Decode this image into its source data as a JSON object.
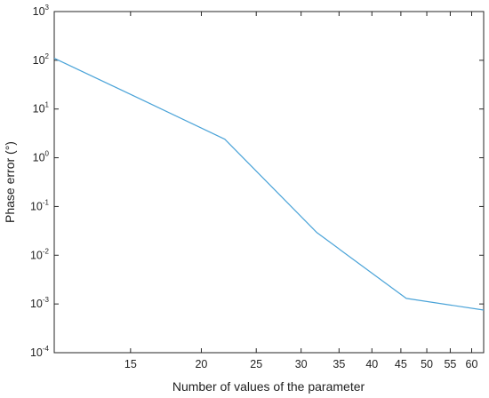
{
  "chart_data": {
    "type": "line",
    "xlabel": "Number of values of the parameter",
    "ylabel": "Phase error (°)",
    "xscale": "log",
    "yscale": "log",
    "xlim": [
      11,
      63
    ],
    "ylim": [
      0.0001,
      1000
    ],
    "xticks": [
      15,
      20,
      25,
      30,
      35,
      40,
      45,
      50,
      55,
      60
    ],
    "yticks": [
      {
        "value": 0.0001,
        "base": "10",
        "exp": "-4"
      },
      {
        "value": 0.001,
        "base": "10",
        "exp": "-3"
      },
      {
        "value": 0.01,
        "base": "10",
        "exp": "-2"
      },
      {
        "value": 0.1,
        "base": "10",
        "exp": "-1"
      },
      {
        "value": 1,
        "base": "10",
        "exp": "0"
      },
      {
        "value": 10,
        "base": "10",
        "exp": "1"
      },
      {
        "value": 100,
        "base": "10",
        "exp": "2"
      },
      {
        "value": 1000,
        "base": "10",
        "exp": "3"
      }
    ],
    "grid": false,
    "series": [
      {
        "color": "#4aa3d8",
        "x": [
          11,
          16,
          22,
          32,
          46,
          63
        ],
        "y": [
          110,
          14,
          2.4,
          0.029,
          0.0013,
          0.00075
        ]
      }
    ]
  }
}
